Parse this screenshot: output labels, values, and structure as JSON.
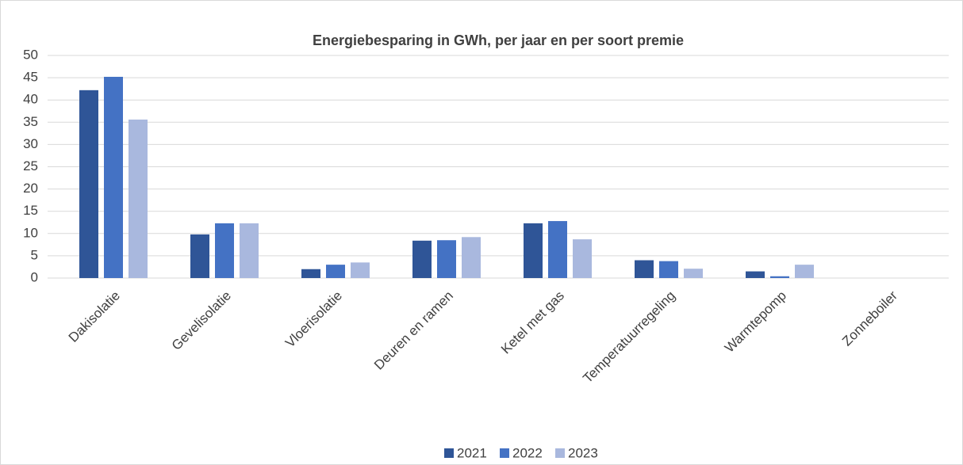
{
  "chart_data": {
    "type": "bar",
    "title": "Energiebesparing in GWh, per jaar en per soort premie",
    "categories": [
      "Dakisolatie",
      "Gevelisolatie",
      "Vloerisolatie",
      "Deuren en ramen",
      "Ketel met gas",
      "Temperatuurregeling",
      "Warmtepomp",
      "Zonneboiler"
    ],
    "series": [
      {
        "name": "2021",
        "color": "#2f5597",
        "values": [
          42.2,
          9.8,
          2.0,
          8.4,
          12.3,
          4.0,
          1.5,
          0
        ]
      },
      {
        "name": "2022",
        "color": "#4472c4",
        "values": [
          45.2,
          12.3,
          3.0,
          8.5,
          12.8,
          3.8,
          0.4,
          0
        ]
      },
      {
        "name": "2023",
        "color": "#a9b8de",
        "values": [
          35.6,
          12.3,
          3.5,
          9.2,
          8.7,
          2.1,
          3.0,
          0
        ]
      }
    ],
    "ylim": [
      0,
      50
    ],
    "yticks": [
      0,
      5,
      10,
      15,
      20,
      25,
      30,
      35,
      40,
      45,
      50
    ],
    "grid": true,
    "legend": "bottom"
  }
}
